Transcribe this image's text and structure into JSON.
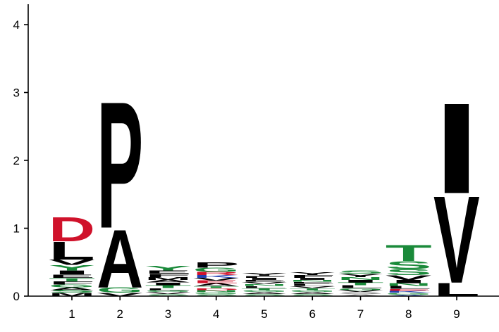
{
  "chart_data": {
    "type": "sequence-logo",
    "title": "",
    "xlabel": "",
    "ylabel": "",
    "ylim": [
      0,
      4.3
    ],
    "y_ticks": [
      "0",
      "1",
      "2",
      "3",
      "4"
    ],
    "y_tick_values": [
      0,
      1,
      2,
      3,
      4
    ],
    "positions": [
      "1",
      "2",
      "3",
      "4",
      "5",
      "6",
      "7",
      "8",
      "9"
    ],
    "colors": {
      "hydrophobic": "#000000",
      "polar": "#1a8a3a",
      "acidic": "#d0122b",
      "basic": "#2040b0",
      "other": "#888888"
    },
    "stacks": [
      {
        "position": "1",
        "letters": [
          {
            "char": "M",
            "height": 0.05,
            "color": "#000000"
          },
          {
            "char": "S",
            "height": 0.04,
            "color": "#1a8a3a"
          },
          {
            "char": "A",
            "height": 0.04,
            "color": "#000000"
          },
          {
            "char": "G",
            "height": 0.04,
            "color": "#1a8a3a"
          },
          {
            "char": "F",
            "height": 0.05,
            "color": "#000000"
          },
          {
            "char": "T",
            "height": 0.05,
            "color": "#1a8a3a"
          },
          {
            "char": "E",
            "height": 0.05,
            "color": "#000000"
          },
          {
            "char": "I",
            "height": 0.06,
            "color": "#000000"
          },
          {
            "char": "Y",
            "height": 0.08,
            "color": "#1a8a3a"
          },
          {
            "char": "V",
            "height": 0.08,
            "color": "#000000"
          },
          {
            "char": "L",
            "height": 0.27,
            "color": "#000000"
          },
          {
            "char": "D",
            "height": 0.37,
            "color": "#d0122b"
          }
        ]
      },
      {
        "position": "2",
        "letters": [
          {
            "char": "V",
            "height": 0.05,
            "color": "#000000"
          },
          {
            "char": "G",
            "height": 0.08,
            "color": "#1a8a3a"
          },
          {
            "char": "A",
            "height": 0.88,
            "color": "#000000"
          },
          {
            "char": "P",
            "height": 1.92,
            "color": "#000000"
          }
        ]
      },
      {
        "position": "3",
        "letters": [
          {
            "char": "S",
            "height": 0.03,
            "color": "#1a8a3a"
          },
          {
            "char": "V",
            "height": 0.03,
            "color": "#000000"
          },
          {
            "char": "G",
            "height": 0.03,
            "color": "#1a8a3a"
          },
          {
            "char": "L",
            "height": 0.03,
            "color": "#000000"
          },
          {
            "char": "T",
            "height": 0.04,
            "color": "#1a8a3a"
          },
          {
            "char": "I",
            "height": 0.04,
            "color": "#000000"
          },
          {
            "char": "A",
            "height": 0.04,
            "color": "#000000"
          },
          {
            "char": "M",
            "height": 0.04,
            "color": "#000000"
          },
          {
            "char": "F",
            "height": 0.05,
            "color": "#000000"
          },
          {
            "char": "E",
            "height": 0.05,
            "color": "#000000"
          },
          {
            "char": "Y",
            "height": 0.07,
            "color": "#1a8a3a"
          }
        ]
      },
      {
        "position": "4",
        "letters": [
          {
            "char": "S",
            "height": 0.03,
            "color": "#1a8a3a"
          },
          {
            "char": "G",
            "height": 0.03,
            "color": "#1a8a3a"
          },
          {
            "char": "N",
            "height": 0.03,
            "color": "#1a8a3a"
          },
          {
            "char": "D",
            "height": 0.03,
            "color": "#d0122b"
          },
          {
            "char": "T",
            "height": 0.03,
            "color": "#1a8a3a"
          },
          {
            "char": "A",
            "height": 0.04,
            "color": "#000000"
          },
          {
            "char": "E",
            "height": 0.04,
            "color": "#d0122b"
          },
          {
            "char": "V",
            "height": 0.04,
            "color": "#000000"
          },
          {
            "char": "K",
            "height": 0.04,
            "color": "#2040b0"
          },
          {
            "char": "R",
            "height": 0.05,
            "color": "#d0122b"
          },
          {
            "char": "G",
            "height": 0.06,
            "color": "#1a8a3a"
          },
          {
            "char": "P",
            "height": 0.08,
            "color": "#000000"
          }
        ]
      },
      {
        "position": "5",
        "letters": [
          {
            "char": "S",
            "height": 0.03,
            "color": "#1a8a3a"
          },
          {
            "char": "A",
            "height": 0.03,
            "color": "#000000"
          },
          {
            "char": "G",
            "height": 0.03,
            "color": "#1a8a3a"
          },
          {
            "char": "T",
            "height": 0.03,
            "color": "#1a8a3a"
          },
          {
            "char": "L",
            "height": 0.03,
            "color": "#000000"
          },
          {
            "char": "N",
            "height": 0.03,
            "color": "#1a8a3a"
          },
          {
            "char": "V",
            "height": 0.03,
            "color": "#000000"
          },
          {
            "char": "E",
            "height": 0.03,
            "color": "#000000"
          },
          {
            "char": "I",
            "height": 0.03,
            "color": "#000000"
          },
          {
            "char": "F",
            "height": 0.03,
            "color": "#000000"
          },
          {
            "char": "Y",
            "height": 0.04,
            "color": "#000000"
          }
        ]
      },
      {
        "position": "6",
        "letters": [
          {
            "char": "S",
            "height": 0.03,
            "color": "#1a8a3a"
          },
          {
            "char": "A",
            "height": 0.03,
            "color": "#000000"
          },
          {
            "char": "G",
            "height": 0.03,
            "color": "#1a8a3a"
          },
          {
            "char": "T",
            "height": 0.03,
            "color": "#1a8a3a"
          },
          {
            "char": "V",
            "height": 0.03,
            "color": "#000000"
          },
          {
            "char": "L",
            "height": 0.03,
            "color": "#000000"
          },
          {
            "char": "E",
            "height": 0.03,
            "color": "#000000"
          },
          {
            "char": "N",
            "height": 0.03,
            "color": "#1a8a3a"
          },
          {
            "char": "I",
            "height": 0.03,
            "color": "#000000"
          },
          {
            "char": "F",
            "height": 0.04,
            "color": "#000000"
          },
          {
            "char": "Y",
            "height": 0.04,
            "color": "#000000"
          }
        ]
      },
      {
        "position": "7",
        "letters": [
          {
            "char": "A",
            "height": 0.03,
            "color": "#888888"
          },
          {
            "char": "S",
            "height": 0.03,
            "color": "#888888"
          },
          {
            "char": "V",
            "height": 0.03,
            "color": "#000000"
          },
          {
            "char": "G",
            "height": 0.03,
            "color": "#1a8a3a"
          },
          {
            "char": "L",
            "height": 0.04,
            "color": "#000000"
          },
          {
            "char": "T",
            "height": 0.04,
            "color": "#1a8a3a"
          },
          {
            "char": "I",
            "height": 0.04,
            "color": "#000000"
          },
          {
            "char": "N",
            "height": 0.04,
            "color": "#1a8a3a"
          },
          {
            "char": "Y",
            "height": 0.05,
            "color": "#000000"
          },
          {
            "char": "S",
            "height": 0.05,
            "color": "#1a8a3a"
          }
        ]
      },
      {
        "position": "8",
        "letters": [
          {
            "char": "A",
            "height": 0.02,
            "color": "#2040b0"
          },
          {
            "char": "G",
            "height": 0.03,
            "color": "#1a8a3a"
          },
          {
            "char": "K",
            "height": 0.03,
            "color": "#2040b0"
          },
          {
            "char": "E",
            "height": 0.03,
            "color": "#d0122b"
          },
          {
            "char": "L",
            "height": 0.04,
            "color": "#000000"
          },
          {
            "char": "N",
            "height": 0.04,
            "color": "#1a8a3a"
          },
          {
            "char": "I",
            "height": 0.05,
            "color": "#000000"
          },
          {
            "char": "V",
            "height": 0.07,
            "color": "#000000"
          },
          {
            "char": "S",
            "height": 0.09,
            "color": "#1a8a3a"
          },
          {
            "char": "S",
            "height": 0.12,
            "color": "#1a8a3a"
          },
          {
            "char": "T",
            "height": 0.24,
            "color": "#1a8a3a"
          }
        ]
      },
      {
        "position": "9",
        "letters": [
          {
            "char": "L",
            "height": 0.2,
            "color": "#000000"
          },
          {
            "char": "V",
            "height": 1.32,
            "color": "#000000"
          },
          {
            "char": "I",
            "height": 1.37,
            "color": "#000000"
          }
        ]
      }
    ]
  }
}
